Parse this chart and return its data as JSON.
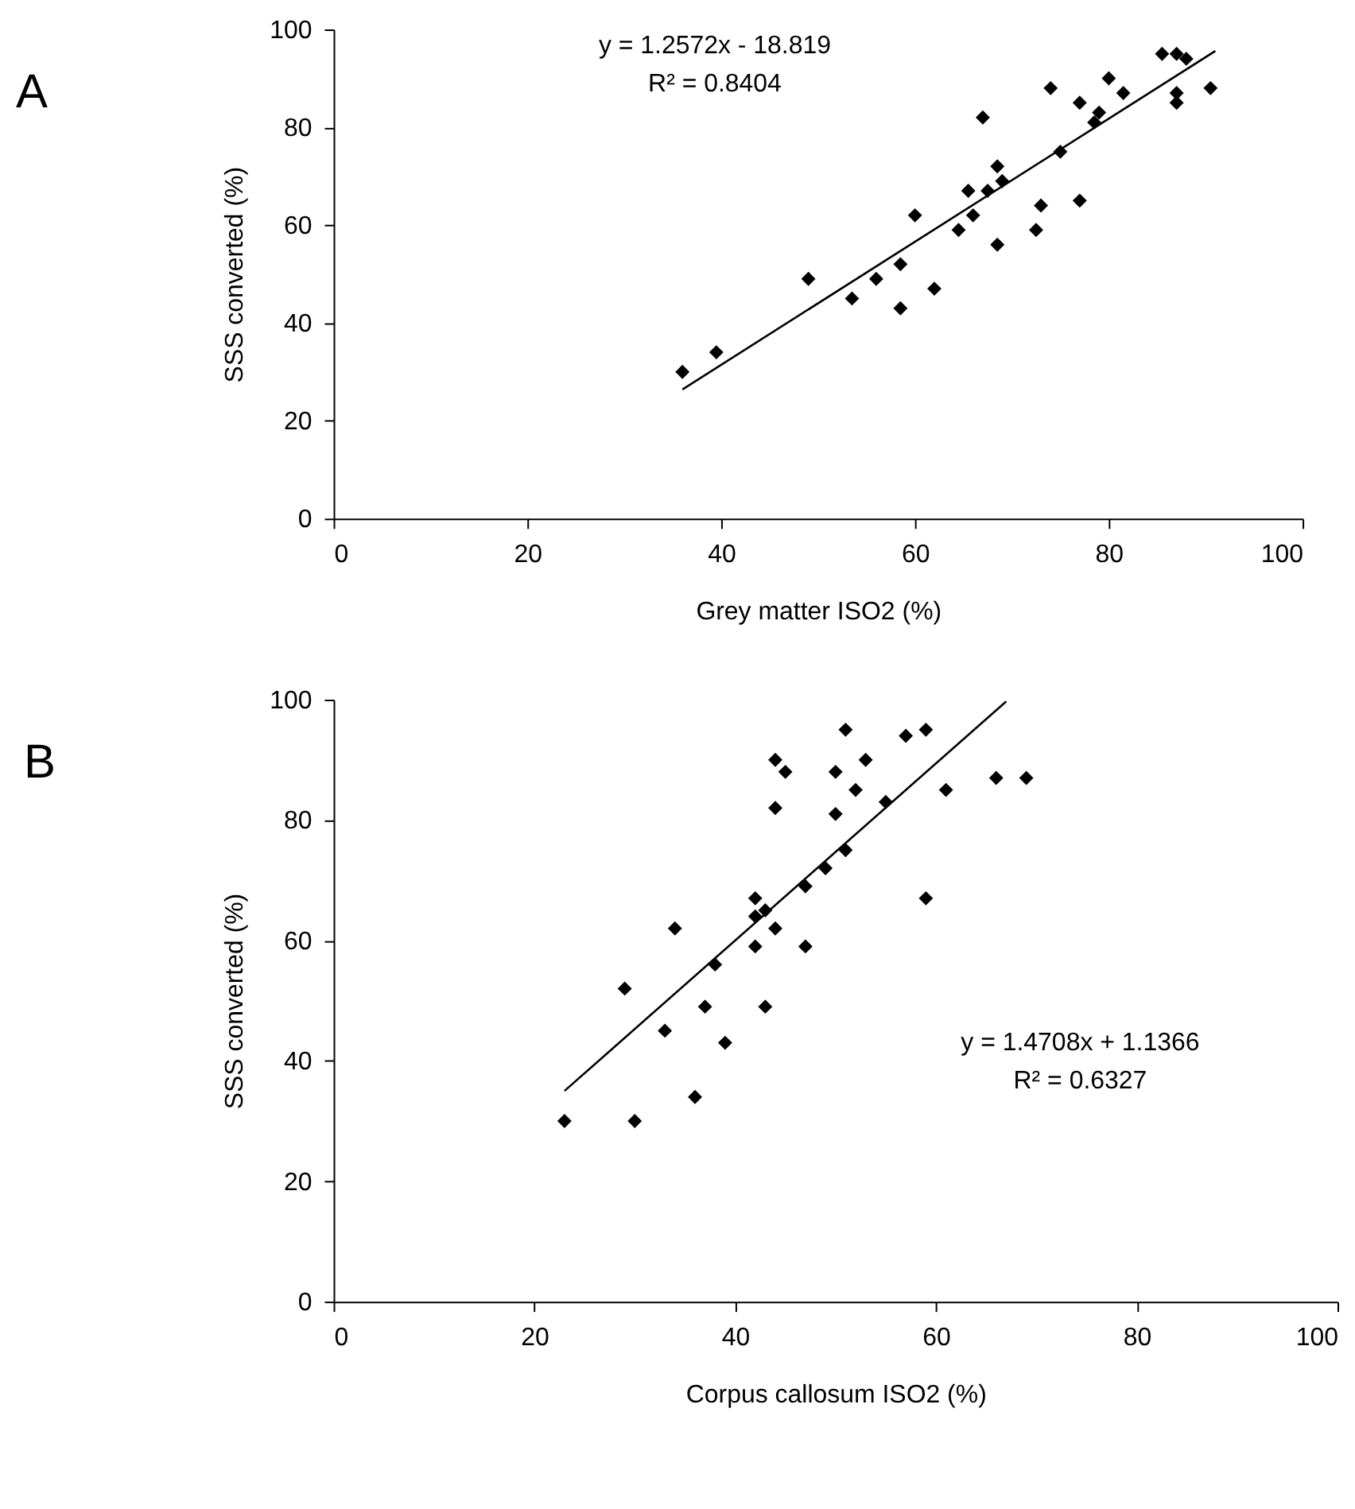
{
  "chart_data": [
    {
      "type": "scatter",
      "xlabel": "Grey matter ISO2 (%)",
      "ylabel": "SSS converted (%)",
      "annotations": [
        "A",
        "y = 1.2572x - 18.819",
        "R² = 0.8404"
      ],
      "xlim": [
        0,
        100
      ],
      "xticks": [
        0,
        20,
        40,
        60,
        80,
        100
      ],
      "ylim": [
        0,
        100
      ],
      "yticks": [
        0,
        20,
        40,
        60,
        80,
        100
      ],
      "grid": false,
      "marker": "diamond",
      "series": [
        {
          "color": "#000000",
          "x": [
            36,
            39.5,
            49,
            53.5,
            56,
            58.5,
            58.5,
            60,
            62,
            64.5,
            65.5,
            66,
            67,
            67.5,
            68.5,
            68.5,
            69,
            72.5,
            73,
            74,
            75,
            77,
            77,
            78.5,
            79,
            80,
            81.5,
            85.5,
            87,
            87,
            87,
            88,
            90.5
          ],
          "values": [
            30,
            34,
            49,
            45,
            49,
            52,
            43,
            62,
            47,
            59,
            67,
            62,
            82,
            67,
            56,
            72,
            69,
            59,
            64,
            88,
            75,
            85,
            65,
            81,
            83,
            90,
            87,
            95,
            95,
            87,
            85,
            94,
            88
          ]
        },
        {
          "type": "line",
          "color": "#000000",
          "x": [
            36,
            91
          ],
          "values": [
            26.4,
            95.6
          ],
          "marker": "none",
          "line_style": "solid"
        }
      ]
    },
    {
      "type": "scatter",
      "xlabel": "Corpus callosum ISO2 (%)",
      "ylabel": "SSS converted (%)",
      "annotations": [
        "B",
        "y = 1.4708x + 1.1366",
        "R² = 0.6327"
      ],
      "xlim": [
        0,
        100
      ],
      "xticks": [
        0,
        20,
        40,
        60,
        80,
        100
      ],
      "ylim": [
        0,
        100
      ],
      "yticks": [
        0,
        20,
        40,
        60,
        80,
        100
      ],
      "grid": false,
      "marker": "diamond",
      "series": [
        {
          "color": "#000000",
          "x": [
            23,
            29,
            30,
            33,
            34,
            36,
            37,
            38,
            39,
            42,
            42,
            42,
            43,
            43,
            44,
            44,
            44,
            45,
            47,
            47,
            49,
            50,
            50,
            51,
            51,
            52,
            53,
            55,
            57,
            59,
            59,
            61,
            66,
            69
          ],
          "values": [
            30,
            52,
            30,
            45,
            62,
            34,
            49,
            56,
            43,
            67,
            64,
            59,
            65,
            49,
            90,
            82,
            62,
            88,
            69,
            59,
            72,
            88,
            81,
            95,
            75,
            85,
            90,
            83,
            94,
            95,
            67,
            85,
            87,
            87
          ]
        },
        {
          "type": "line",
          "color": "#000000",
          "x": [
            23,
            67
          ],
          "values": [
            35.0,
            99.7
          ],
          "marker": "none",
          "line_style": "solid"
        }
      ]
    }
  ]
}
